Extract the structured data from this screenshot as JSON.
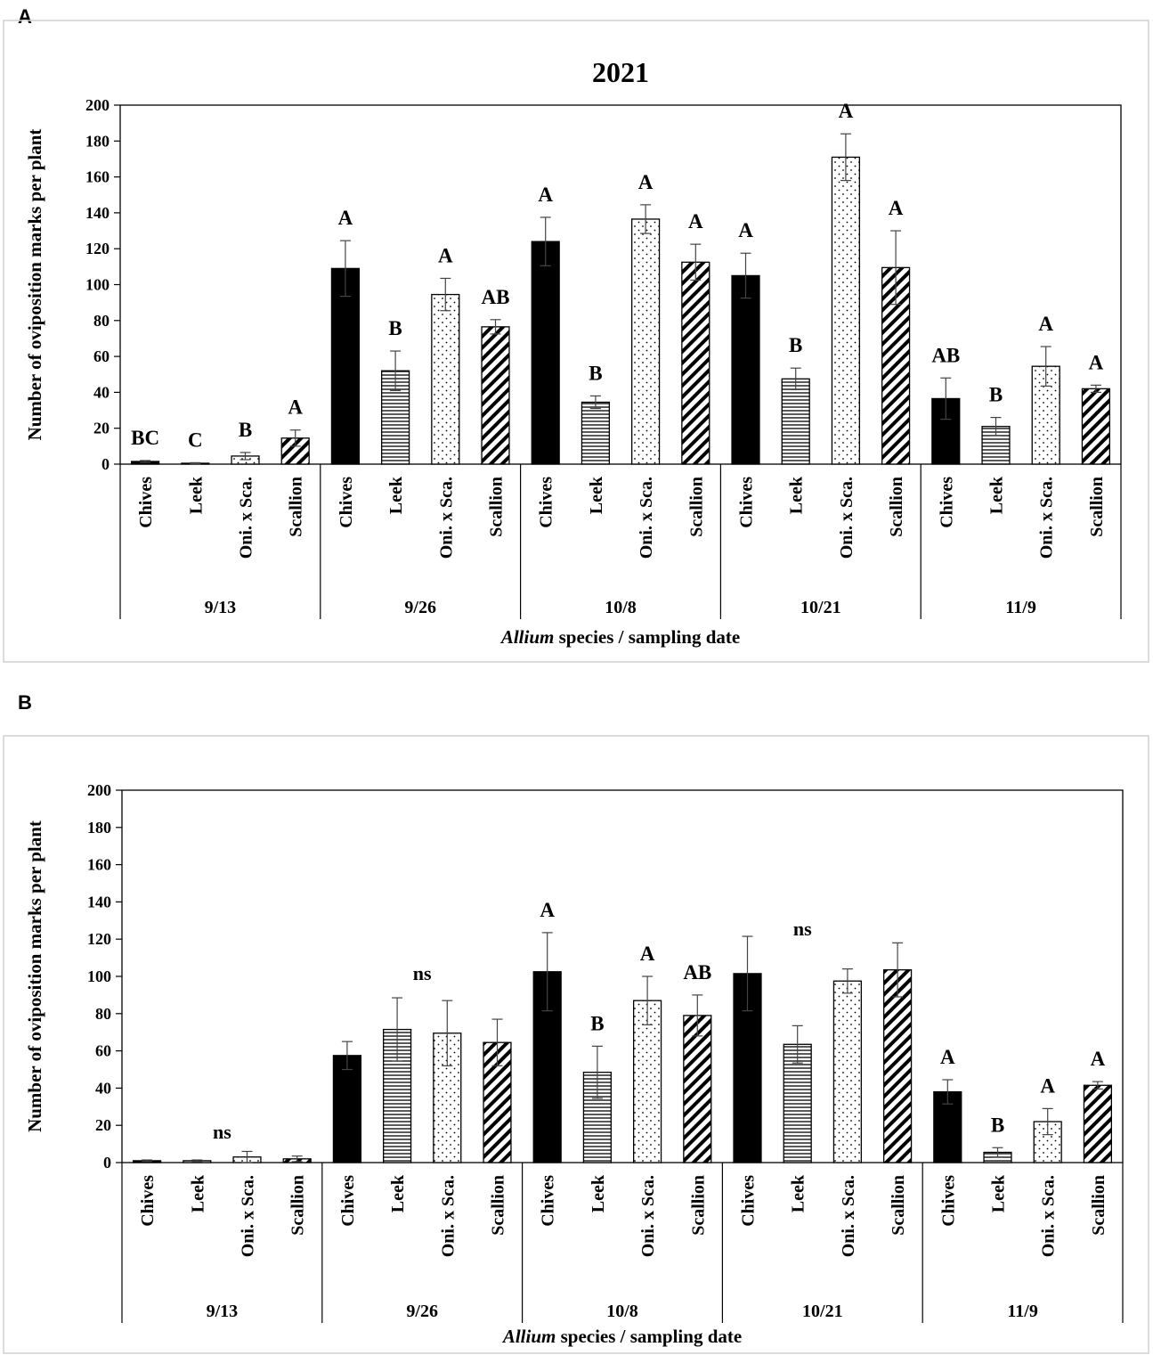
{
  "chart_data": [
    {
      "panel_label": "A",
      "type": "bar",
      "title": "2021",
      "ylabel": "Number of oviposition marks per plant",
      "xlabel_italic": "Allium",
      "xlabel_rest": " species / sampling date",
      "ylim": [
        0,
        200
      ],
      "yticks": [
        "0",
        "20",
        "40",
        "60",
        "80",
        "100",
        "120",
        "140",
        "160",
        "180",
        "200"
      ],
      "species": [
        "Chives",
        "Leek",
        "Oni. x Sca.",
        "Scallion"
      ],
      "groups": [
        {
          "date": "9/13",
          "values": [
            1.5,
            0.5,
            4.5,
            14.5
          ],
          "errors": [
            0.5,
            0.3,
            2,
            4.5
          ],
          "letters": [
            "BC",
            "C",
            "B",
            "A"
          ]
        },
        {
          "date": "9/26",
          "values": [
            109,
            52,
            94.5,
            76.5
          ],
          "errors": [
            15.5,
            11,
            9,
            4
          ],
          "letters": [
            "A",
            "B",
            "A",
            "AB"
          ]
        },
        {
          "date": "10/8",
          "values": [
            124,
            34.5,
            136.5,
            112.5
          ],
          "errors": [
            13.5,
            3.5,
            8,
            10
          ],
          "letters": [
            "A",
            "B",
            "A",
            "A"
          ]
        },
        {
          "date": "10/21",
          "values": [
            105,
            47.5,
            171,
            109.5
          ],
          "errors": [
            12.5,
            6,
            13,
            20.5
          ],
          "letters": [
            "A",
            "B",
            "A",
            "A"
          ]
        },
        {
          "date": "11/9",
          "values": [
            36.5,
            21,
            54.5,
            42
          ],
          "errors": [
            11.5,
            5,
            11,
            2
          ],
          "letters": [
            "AB",
            "B",
            "A",
            "A"
          ]
        }
      ],
      "annotations": []
    },
    {
      "panel_label": "B",
      "type": "bar",
      "title": "",
      "ylabel": "Number of oviposition marks per plant",
      "xlabel_italic": "Allium",
      "xlabel_rest": " species / sampling date",
      "ylim": [
        0,
        200
      ],
      "yticks": [
        "0",
        "20",
        "40",
        "60",
        "80",
        "100",
        "120",
        "140",
        "160",
        "180",
        "200"
      ],
      "species": [
        "Chives",
        "Leek",
        "Oni. x Sca.",
        "Scallion"
      ],
      "groups": [
        {
          "date": "9/13",
          "values": [
            1,
            1,
            3,
            2
          ],
          "errors": [
            0.4,
            0.4,
            3,
            1.5
          ],
          "letters": []
        },
        {
          "date": "9/26",
          "values": [
            57.5,
            71.5,
            69.5,
            64.5
          ],
          "errors": [
            7.5,
            17,
            17.5,
            12.5
          ],
          "letters": []
        },
        {
          "date": "10/8",
          "values": [
            102.5,
            48.5,
            87,
            79
          ],
          "errors": [
            21,
            14,
            13,
            11
          ],
          "letters": [
            "A",
            "B",
            "A",
            "AB"
          ]
        },
        {
          "date": "10/21",
          "values": [
            101.5,
            63.5,
            97.5,
            103.5
          ],
          "errors": [
            20,
            10,
            6.5,
            14.5
          ],
          "letters": []
        },
        {
          "date": "11/9",
          "values": [
            38,
            5.5,
            22,
            41.5
          ],
          "errors": [
            6.5,
            2.5,
            7,
            2
          ],
          "letters": [
            "A",
            "B",
            "A",
            "A"
          ]
        }
      ],
      "annotations": [
        {
          "text": "ns",
          "group": 0,
          "at": 2,
          "value": 13
        },
        {
          "text": "ns",
          "group": 1,
          "at": 2,
          "value": 98
        },
        {
          "text": "ns",
          "group": 3,
          "at": 1.6,
          "value": 122
        }
      ]
    }
  ]
}
